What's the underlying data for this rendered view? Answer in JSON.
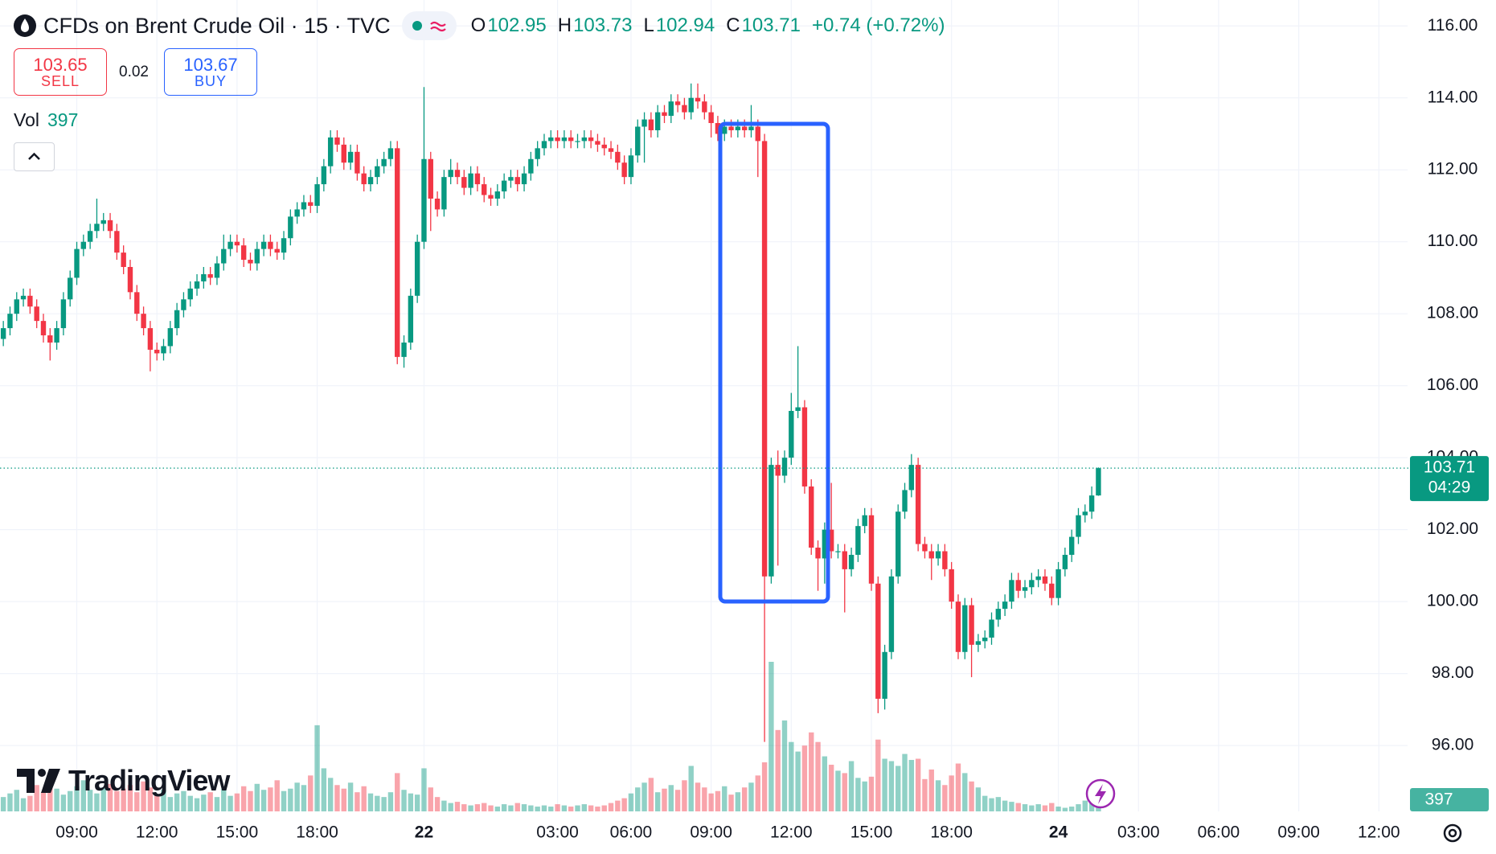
{
  "chart_data": {
    "type": "candlestick",
    "title": "CFDs on Brent Crude Oil · 15 · TVC",
    "ohlc_labels": {
      "open": "O",
      "high": "H",
      "low": "L",
      "close": "C"
    },
    "change": "+0.74 (+0.72%)",
    "volume_label": "Vol",
    "countdown": "04:29",
    "up_color": "#089981",
    "down_color": "#f23645",
    "open": [
      107.3,
      107.6,
      108.0,
      108.4,
      108.5,
      108.2,
      107.8,
      107.4,
      107.2,
      107.6,
      108.4,
      109.0,
      109.8,
      110.0,
      110.3,
      110.5,
      110.6,
      110.3,
      109.7,
      109.3,
      108.6,
      108.0,
      107.6,
      107.0,
      106.9,
      107.1,
      107.6,
      108.1,
      108.4,
      108.7,
      108.9,
      109.1,
      109.0,
      109.4,
      109.8,
      110.0,
      109.9,
      109.5,
      109.4,
      109.8,
      110.0,
      109.8,
      109.7,
      110.1,
      110.7,
      110.9,
      111.1,
      111.0,
      111.6,
      112.1,
      112.9,
      112.7,
      112.2,
      112.5,
      111.9,
      111.6,
      111.8,
      112.1,
      112.3,
      112.6,
      106.8,
      107.2,
      108.5,
      110.0,
      112.3,
      111.2,
      110.9,
      111.8,
      112.0,
      111.8,
      111.5,
      111.9,
      111.6,
      111.3,
      111.2,
      111.4,
      111.7,
      111.8,
      111.6,
      111.9,
      112.3,
      112.6,
      112.8,
      112.9,
      112.8,
      112.9,
      112.8,
      112.8,
      112.9,
      112.8,
      112.7,
      112.6,
      112.5,
      112.2,
      111.8,
      112.4,
      113.2,
      113.4,
      113.1,
      113.6,
      113.5,
      113.9,
      113.8,
      113.6,
      114.0,
      113.9,
      113.6,
      113.3,
      113.0,
      113.2,
      113.1,
      113.2,
      113.1,
      113.2,
      112.8,
      100.7,
      103.8,
      103.5,
      104.0,
      105.3,
      105.4,
      103.2,
      101.5,
      101.2,
      102.0,
      101.4,
      101.4,
      100.9,
      101.3,
      102.1,
      102.4,
      100.5,
      97.3,
      98.6,
      100.7,
      102.5,
      103.1,
      103.8,
      101.6,
      101.4,
      101.2,
      101.4,
      100.9,
      100.0,
      98.6,
      99.9,
      98.8,
      98.9,
      99.0,
      99.5,
      99.8,
      100.0,
      100.6,
      100.3,
      100.4,
      100.6,
      100.7,
      100.5,
      100.1,
      100.9,
      101.3,
      101.8,
      102.4,
      102.5,
      102.95
    ],
    "high": [
      107.8,
      108.2,
      108.6,
      108.7,
      108.7,
      108.4,
      108.0,
      107.6,
      107.8,
      108.6,
      109.2,
      110.0,
      110.2,
      110.5,
      111.2,
      110.8,
      110.8,
      110.5,
      109.9,
      109.5,
      108.8,
      108.2,
      107.8,
      107.2,
      107.3,
      107.8,
      108.3,
      108.6,
      108.9,
      109.1,
      109.3,
      109.3,
      109.6,
      110.2,
      110.2,
      110.2,
      110.1,
      109.7,
      110.0,
      110.2,
      110.2,
      110.0,
      110.3,
      110.9,
      111.1,
      111.3,
      111.3,
      111.8,
      112.3,
      113.1,
      113.1,
      112.9,
      112.7,
      112.7,
      112.1,
      112.0,
      112.3,
      112.5,
      112.8,
      112.8,
      107.4,
      108.7,
      110.2,
      114.3,
      112.5,
      111.4,
      112.0,
      112.3,
      112.2,
      112.0,
      112.1,
      112.1,
      111.8,
      111.5,
      111.6,
      111.9,
      112.0,
      112.0,
      112.1,
      112.5,
      112.8,
      113.0,
      113.1,
      113.1,
      113.1,
      113.1,
      113.0,
      113.1,
      113.1,
      113.0,
      112.9,
      112.8,
      112.7,
      112.4,
      112.6,
      113.4,
      113.6,
      113.6,
      113.8,
      113.8,
      114.1,
      114.1,
      114.0,
      114.4,
      114.4,
      114.1,
      113.8,
      113.5,
      113.4,
      113.4,
      113.4,
      113.4,
      113.8,
      113.4,
      113.0,
      104.0,
      104.2,
      104.2,
      105.8,
      107.1,
      105.6,
      103.4,
      101.7,
      102.2,
      103.3,
      101.6,
      101.6,
      101.5,
      102.3,
      102.6,
      102.6,
      100.7,
      98.8,
      100.9,
      102.7,
      103.3,
      104.1,
      104.0,
      101.8,
      101.6,
      101.6,
      101.6,
      101.1,
      100.2,
      100.1,
      100.1,
      99.1,
      99.2,
      99.7,
      100.0,
      100.2,
      100.8,
      100.8,
      100.6,
      100.8,
      100.9,
      100.9,
      100.7,
      101.1,
      101.5,
      102.0,
      102.6,
      102.7,
      103.2,
      103.73
    ],
    "low": [
      107.1,
      107.4,
      107.8,
      108.2,
      108.0,
      107.6,
      107.2,
      106.7,
      107.0,
      107.4,
      108.2,
      108.8,
      109.6,
      109.8,
      110.1,
      110.3,
      110.1,
      109.5,
      109.1,
      108.4,
      107.8,
      107.4,
      106.4,
      106.7,
      106.7,
      106.9,
      107.4,
      107.9,
      108.2,
      108.5,
      108.7,
      108.8,
      108.8,
      109.2,
      109.6,
      109.7,
      109.3,
      109.2,
      109.2,
      109.6,
      109.6,
      109.5,
      109.5,
      109.9,
      110.5,
      110.7,
      110.8,
      110.8,
      111.4,
      111.9,
      112.5,
      112.0,
      112.0,
      111.7,
      111.4,
      111.4,
      111.6,
      111.9,
      112.1,
      106.6,
      106.5,
      107.0,
      108.3,
      109.8,
      110.3,
      110.7,
      110.7,
      111.6,
      111.6,
      111.3,
      111.3,
      111.4,
      111.1,
      111.0,
      111.0,
      111.2,
      111.5,
      111.4,
      111.4,
      111.7,
      112.1,
      112.4,
      112.6,
      112.6,
      112.6,
      112.6,
      112.6,
      112.6,
      112.6,
      112.5,
      112.4,
      112.3,
      112.0,
      111.6,
      111.6,
      112.2,
      112.2,
      112.9,
      112.9,
      113.3,
      113.3,
      113.6,
      113.4,
      113.4,
      113.7,
      113.4,
      112.9,
      112.8,
      112.8,
      112.9,
      112.9,
      112.9,
      112.9,
      111.8,
      96.1,
      100.5,
      101.0,
      103.3,
      103.8,
      105.1,
      103.0,
      101.3,
      100.3,
      100.5,
      101.2,
      101.2,
      99.7,
      100.7,
      101.1,
      101.9,
      100.3,
      96.9,
      97.0,
      98.4,
      100.5,
      102.3,
      102.9,
      101.4,
      101.2,
      100.6,
      101.0,
      100.7,
      99.8,
      98.4,
      98.4,
      97.9,
      98.6,
      98.7,
      98.8,
      99.3,
      99.6,
      99.8,
      100.1,
      100.1,
      100.2,
      100.4,
      100.3,
      99.9,
      99.9,
      100.7,
      101.1,
      101.6,
      102.2,
      102.3,
      102.94
    ],
    "close": [
      107.6,
      108.0,
      108.4,
      108.5,
      108.2,
      107.8,
      107.4,
      107.2,
      107.6,
      108.4,
      109.0,
      109.8,
      110.0,
      110.3,
      110.5,
      110.6,
      110.3,
      109.7,
      109.3,
      108.6,
      108.0,
      107.6,
      107.0,
      106.9,
      107.1,
      107.6,
      108.1,
      108.4,
      108.7,
      108.9,
      109.1,
      109.0,
      109.4,
      109.8,
      110.0,
      109.9,
      109.5,
      109.4,
      109.8,
      110.0,
      109.8,
      109.7,
      110.1,
      110.7,
      110.9,
      111.1,
      111.0,
      111.6,
      112.1,
      112.9,
      112.7,
      112.2,
      112.5,
      111.9,
      111.6,
      111.8,
      112.1,
      112.3,
      112.6,
      106.8,
      107.2,
      108.5,
      110.0,
      112.3,
      111.2,
      110.9,
      111.8,
      112.0,
      111.8,
      111.5,
      111.9,
      111.6,
      111.3,
      111.2,
      111.4,
      111.7,
      111.8,
      111.6,
      111.9,
      112.3,
      112.6,
      112.8,
      112.9,
      112.8,
      112.9,
      112.8,
      112.8,
      112.9,
      112.8,
      112.7,
      112.6,
      112.5,
      112.2,
      111.8,
      112.4,
      113.2,
      113.4,
      113.1,
      113.6,
      113.5,
      113.9,
      113.8,
      113.6,
      114.0,
      113.9,
      113.6,
      113.3,
      113.0,
      113.2,
      113.1,
      113.2,
      113.1,
      113.2,
      112.8,
      100.7,
      103.8,
      103.5,
      104.0,
      105.3,
      105.4,
      103.2,
      101.5,
      101.2,
      102.0,
      101.4,
      101.4,
      100.9,
      101.3,
      102.1,
      102.4,
      100.5,
      97.3,
      98.6,
      100.7,
      102.5,
      103.1,
      103.8,
      101.6,
      101.4,
      101.2,
      101.4,
      100.9,
      100.0,
      98.6,
      99.9,
      98.8,
      98.9,
      99.0,
      99.5,
      99.8,
      100.0,
      100.6,
      100.3,
      100.4,
      100.6,
      100.7,
      100.5,
      100.1,
      100.9,
      101.3,
      101.8,
      102.4,
      102.5,
      102.95,
      103.71
    ],
    "volume": [
      1200,
      1500,
      1800,
      1100,
      1300,
      2200,
      1600,
      2400,
      1900,
      1400,
      1700,
      2100,
      2600,
      1800,
      1500,
      2000,
      2300,
      1700,
      1900,
      2200,
      1600,
      2500,
      2000,
      1400,
      1800,
      1200,
      1500,
      1700,
      1300,
      1100,
      1400,
      1600,
      1200,
      1900,
      1300,
      1500,
      2100,
      1700,
      2300,
      1800,
      2000,
      2600,
      1700,
      1900,
      2400,
      2200,
      3000,
      7200,
      3600,
      2800,
      2200,
      1900,
      2400,
      1600,
      2100,
      1500,
      1300,
      1200,
      1600,
      3200,
      1800,
      1500,
      1400,
      3600,
      2000,
      1200,
      900,
      700,
      800,
      600,
      500,
      600,
      700,
      500,
      400,
      600,
      500,
      700,
      600,
      500,
      400,
      500,
      400,
      600,
      500,
      400,
      500,
      600,
      500,
      400,
      500,
      700,
      900,
      1100,
      1500,
      2000,
      2400,
      2800,
      1600,
      1900,
      2200,
      1800,
      2600,
      3800,
      2400,
      2000,
      1500,
      1700,
      2100,
      1400,
      1600,
      2000,
      2400,
      3000,
      4100,
      12500,
      6800,
      7600,
      5800,
      5000,
      5500,
      6600,
      5800,
      4600,
      3900,
      3400,
      3200,
      4200,
      2800,
      2500,
      2900,
      6000,
      4400,
      4200,
      3800,
      4800,
      4300,
      4400,
      2700,
      3500,
      2600,
      2200,
      3000,
      4000,
      3200,
      2500,
      2000,
      1300,
      1100,
      1200,
      900,
      800,
      700,
      600,
      500,
      600,
      500,
      700,
      400,
      300,
      400,
      600,
      900,
      700,
      397
    ],
    "xlim": [
      -0.5,
      210.3
    ],
    "ylim": [
      94.17,
      116.72
    ],
    "xticks": [
      {
        "value": 11,
        "label": "09:00"
      },
      {
        "value": 23,
        "label": "12:00"
      },
      {
        "value": 35,
        "label": "15:00"
      },
      {
        "value": 47,
        "label": "18:00"
      },
      {
        "value": 63,
        "label": "22"
      },
      {
        "value": 83,
        "label": "03:00"
      },
      {
        "value": 94,
        "label": "06:00"
      },
      {
        "value": 106,
        "label": "09:00"
      },
      {
        "value": 118,
        "label": "12:00"
      },
      {
        "value": 130,
        "label": "15:00"
      },
      {
        "value": 142,
        "label": "18:00"
      },
      {
        "value": 158,
        "label": "24"
      },
      {
        "value": 170,
        "label": "03:00"
      },
      {
        "value": 182,
        "label": "06:00"
      },
      {
        "value": 194,
        "label": "09:00"
      },
      {
        "value": 206,
        "label": "12:00"
      }
    ],
    "yticks": [
      {
        "value": 96,
        "label": "96.00"
      },
      {
        "value": 98,
        "label": "98.00"
      },
      {
        "value": 100,
        "label": "100.00"
      },
      {
        "value": 102,
        "label": "102.00"
      },
      {
        "value": 104,
        "label": "104.00"
      },
      {
        "value": 106,
        "label": "106.00"
      },
      {
        "value": 108,
        "label": "108.00"
      },
      {
        "value": 110,
        "label": "110.00"
      },
      {
        "value": 112,
        "label": "112.00"
      },
      {
        "value": 114,
        "label": "114.00"
      },
      {
        "value": 116,
        "label": "116.00"
      }
    ],
    "grid": true
  },
  "trade": {
    "sell_price": 103.65,
    "sell_label": "SELL",
    "spread": 0.02,
    "buy_price": 103.67,
    "buy_label": "BUY"
  },
  "branding": "TradingView"
}
